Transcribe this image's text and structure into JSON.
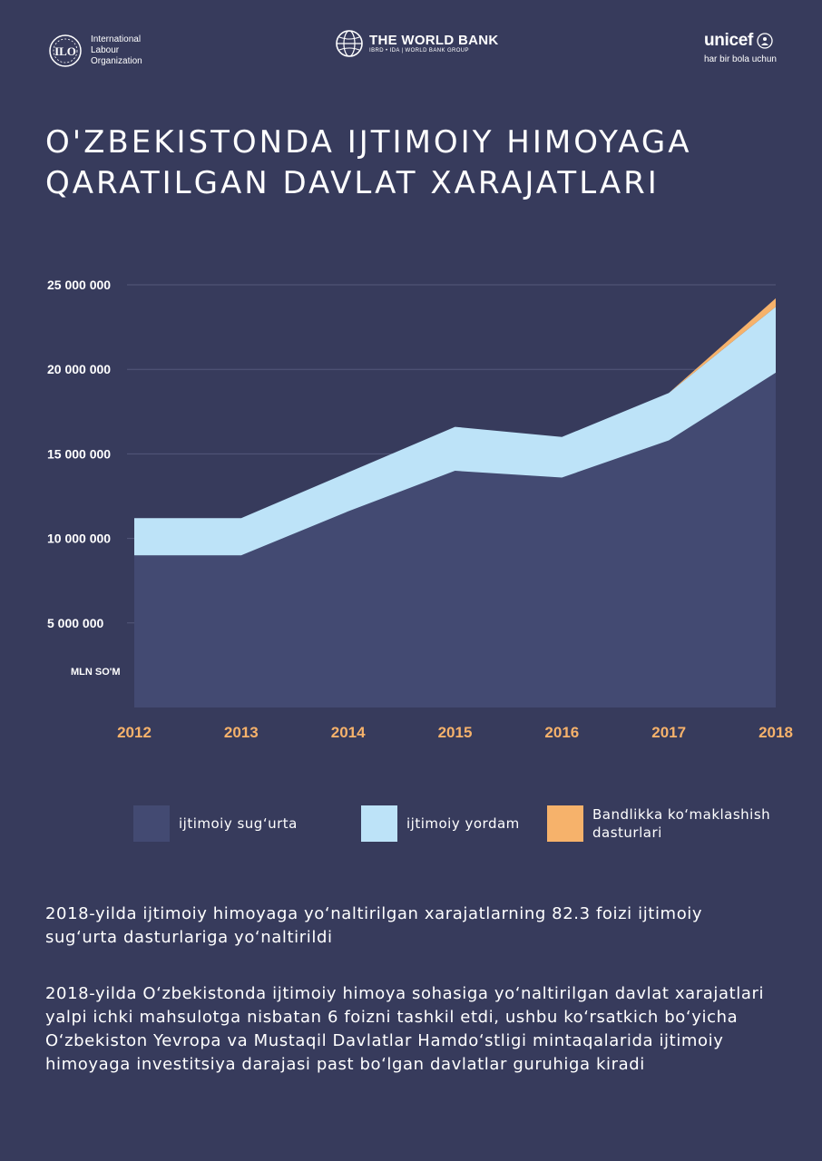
{
  "header": {
    "ilo": {
      "line1": "International",
      "line2": "Labour",
      "line3": "Organization"
    },
    "worldbank": {
      "name": "THE WORLD BANK",
      "sub": "IBRD • IDA  |  WORLD BANK GROUP"
    },
    "unicef": {
      "name": "unicef",
      "tagline": "har bir bola uchun"
    }
  },
  "title": {
    "line1": "O'ZBEKISTONDA IJTIMOIY HIMOYAGA",
    "line2": "QARATILGAN DAVLAT XARAJATLARI"
  },
  "chart_data": {
    "type": "area",
    "stacked": true,
    "ylabel": "MLN  SO'M",
    "x": [
      "2012",
      "2013",
      "2014",
      "2015",
      "2016",
      "2017",
      "2018"
    ],
    "yticks": [
      5000000,
      10000000,
      15000000,
      20000000,
      25000000
    ],
    "ytick_labels": [
      "5 000 000",
      "10 000 000",
      "15 000 000",
      "20 000 000",
      "25 000 000"
    ],
    "ylim": [
      0,
      25000000
    ],
    "grid": "horizontal",
    "series": [
      {
        "name": "ijtimoiy sug‘urta",
        "color": "#434a72",
        "values": [
          9000000,
          9000000,
          11600000,
          14000000,
          13600000,
          15800000,
          19800000
        ]
      },
      {
        "name": "ijtimoiy yordam",
        "color": "#bde3f8",
        "values": [
          2200000,
          2200000,
          2300000,
          2600000,
          2400000,
          2800000,
          3900000
        ]
      },
      {
        "name": "Bandlikka ko‘maklashish dasturlari",
        "color": "#f6b26b",
        "values": [
          0,
          0,
          0,
          0,
          0,
          0,
          500000
        ]
      }
    ]
  },
  "legend": {
    "items": [
      {
        "label1": "ijtimoiy sug‘urta",
        "label2": ""
      },
      {
        "label1": "ijtimoiy yordam",
        "label2": ""
      },
      {
        "label1": "Bandlikka ko‘maklashish",
        "label2": "dasturlari"
      }
    ]
  },
  "paragraphs": {
    "p1": "2018-yilda ijtimoiy himoyaga yo‘naltirilgan xarajatlarning 82.3 foizi ijtimoiy sug‘urta dasturlariga yo‘naltirildi",
    "p2": "2018-yilda O‘zbekistonda ijtimoiy himoya sohasiga yo‘naltirilgan davlat xarajatlari yalpi ichki mahsulotga nisbatan 6 foizni tashkil etdi, ushbu ko‘rsatkich bo‘yicha O‘zbekiston Yevropa va Mustaqil Davlatlar Hamdo‘stligi mintaqalarida ijtimoiy himoyaga investitsiya darajasi past bo‘lgan davlatlar guruhiga kiradi"
  }
}
